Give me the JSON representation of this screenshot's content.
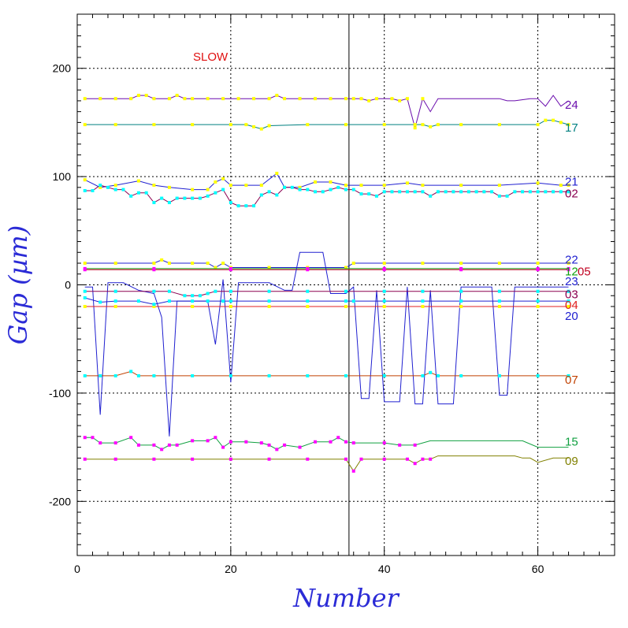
{
  "chart_data": {
    "type": "line",
    "xlabel": "Number",
    "ylabel": "Gap (µm)",
    "xlim": [
      0,
      70
    ],
    "ylim": [
      -250,
      250
    ],
    "x_ticks": [
      0,
      20,
      40,
      60
    ],
    "y_ticks": [
      -200,
      -100,
      0,
      100,
      200
    ],
    "grid": true,
    "divider_x": 35.4,
    "annotations": [
      {
        "text": "SLOW",
        "x": 19,
        "y": 210,
        "color": "#e01010"
      }
    ],
    "series": [
      {
        "name": "24",
        "color": "#6a0dad",
        "label_color": "#6a0dad",
        "label_y": 167,
        "marker": "#ffff00",
        "marker_max_x": 45,
        "x": [
          1,
          3,
          5,
          7,
          8,
          9,
          10,
          12,
          13,
          14,
          15,
          17,
          19,
          21,
          23,
          25,
          26,
          27,
          29,
          31,
          33,
          35,
          36,
          37,
          38,
          39,
          41,
          42,
          43,
          44,
          45,
          46,
          47,
          49,
          51,
          53,
          55,
          56,
          57,
          59,
          60,
          61,
          62,
          63,
          64
        ],
        "y": [
          172,
          172,
          172,
          172,
          175,
          175,
          172,
          172,
          175,
          172,
          172,
          172,
          172,
          172,
          172,
          172,
          175,
          172,
          172,
          172,
          172,
          172,
          172,
          172,
          170,
          172,
          172,
          170,
          172,
          145,
          172,
          160,
          172,
          172,
          172,
          172,
          172,
          170,
          170,
          172,
          172,
          165,
          175,
          165,
          170
        ]
      },
      {
        "name": "17",
        "color": "#008080",
        "label_color": "#008080",
        "label_y": 146,
        "marker": "#ffff00",
        "marker_max_x": 64,
        "x": [
          1,
          5,
          10,
          15,
          20,
          22,
          23,
          24,
          25,
          30,
          35,
          40,
          44,
          45,
          46,
          47,
          50,
          55,
          60,
          61,
          62,
          63,
          64
        ],
        "y": [
          148,
          148,
          148,
          148,
          148,
          148,
          146,
          144,
          147,
          148,
          148,
          148,
          148,
          148,
          146,
          148,
          148,
          148,
          148,
          152,
          152,
          150,
          148
        ]
      },
      {
        "name": "21",
        "color": "#2020d0",
        "label_color": "#2020d0",
        "label_y": 96,
        "marker": "#ffff00",
        "marker_max_x": 64,
        "x": [
          1,
          3,
          5,
          8,
          10,
          12,
          15,
          17,
          18,
          19,
          20,
          22,
          24,
          26,
          27,
          29,
          31,
          33,
          35,
          37,
          40,
          43,
          45,
          50,
          55,
          60,
          63,
          64
        ],
        "y": [
          97,
          90,
          92,
          96,
          92,
          90,
          88,
          88,
          95,
          98,
          92,
          92,
          92,
          103,
          90,
          90,
          95,
          95,
          92,
          92,
          92,
          94,
          92,
          92,
          92,
          94,
          92,
          92
        ]
      },
      {
        "name": "02",
        "color": "#8b0050",
        "label_color": "#8b0050",
        "label_y": 85,
        "marker": "#00ffff",
        "marker_max_x": 64,
        "x": [
          1,
          2,
          3,
          4,
          5,
          6,
          7,
          8,
          9,
          10,
          11,
          12,
          13,
          14,
          15,
          16,
          17,
          18,
          19,
          20,
          21,
          22,
          23,
          24,
          25,
          26,
          27,
          28,
          29,
          30,
          31,
          32,
          33,
          34,
          35,
          36,
          37,
          38,
          39,
          40,
          41,
          42,
          43,
          44,
          45,
          46,
          47,
          48,
          49,
          50,
          51,
          52,
          53,
          54,
          55,
          56,
          57,
          58,
          59,
          60,
          61,
          62,
          63,
          64
        ],
        "y": [
          87,
          87,
          92,
          90,
          88,
          88,
          82,
          85,
          85,
          76,
          80,
          76,
          80,
          80,
          80,
          80,
          82,
          85,
          88,
          76,
          73,
          73,
          73,
          83,
          86,
          83,
          90,
          90,
          88,
          88,
          86,
          86,
          88,
          90,
          88,
          88,
          84,
          84,
          82,
          86,
          86,
          86,
          86,
          86,
          86,
          82,
          86,
          86,
          86,
          86,
          86,
          86,
          86,
          86,
          82,
          82,
          86,
          86,
          86,
          86,
          86,
          86,
          86,
          86
        ]
      },
      {
        "name": "22",
        "color": "#2020d0",
        "label_color": "#2020d0",
        "label_y": 24,
        "marker": "#ffff00",
        "marker_max_x": 64,
        "x": [
          1,
          5,
          10,
          11,
          12,
          15,
          17,
          18,
          19,
          20,
          25,
          30,
          35,
          36,
          40,
          45,
          50,
          55,
          60,
          64
        ],
        "y": [
          20,
          20,
          20,
          23,
          20,
          20,
          20,
          16,
          20,
          16,
          16,
          16,
          16,
          20,
          20,
          20,
          20,
          20,
          20,
          20
        ]
      },
      {
        "name": "12",
        "color": "#10a010",
        "label_color": "#10a010",
        "label_y": 13,
        "marker": "#ff00ff",
        "marker_max_x": 64,
        "x": [
          1,
          10,
          20,
          30,
          40,
          50,
          60,
          64
        ],
        "y": [
          15,
          15,
          15,
          15,
          15,
          15,
          15,
          15
        ]
      },
      {
        "name": "05",
        "color": "#c00020",
        "label_color": "#c00020",
        "label_y": 13,
        "label_dx": 16,
        "marker": "#ff00ff",
        "marker_max_x": 64,
        "x": [
          1,
          10,
          20,
          30,
          40,
          50,
          60,
          64
        ],
        "y": [
          14,
          14,
          14,
          14,
          14,
          14,
          14,
          14
        ]
      },
      {
        "name": "23",
        "color": "#2020d0",
        "label_color": "#2020d0",
        "label_y": 4,
        "marker": "#ff00ff",
        "marker_max_x": 0,
        "x": [
          1,
          2,
          3,
          4,
          5,
          6,
          8,
          10,
          11,
          12,
          13,
          15,
          17,
          18,
          19,
          20,
          21,
          22,
          23,
          25,
          27,
          28,
          29,
          30,
          31,
          32,
          33,
          34,
          35,
          36,
          37,
          38,
          39,
          40,
          41,
          42,
          43,
          44,
          45,
          46,
          47,
          48,
          49,
          50,
          51,
          52,
          53,
          54,
          55,
          56,
          57,
          58,
          59,
          60,
          61,
          62,
          63,
          64
        ],
        "y": [
          -2,
          -2,
          -120,
          2,
          2,
          2,
          -5,
          -8,
          -30,
          -140,
          -15,
          -15,
          -15,
          -55,
          5,
          -90,
          2,
          2,
          2,
          2,
          -5,
          -5,
          30,
          30,
          30,
          30,
          -8,
          -8,
          -8,
          -2,
          -105,
          -105,
          -5,
          -108,
          -108,
          -108,
          -2,
          -110,
          -110,
          -5,
          -110,
          -110,
          -110,
          -2,
          -2,
          -2,
          -2,
          -2,
          -102,
          -102,
          -2,
          -2,
          -2,
          -2,
          -2,
          -2,
          -2,
          -2
        ]
      },
      {
        "name": "03",
        "color": "#8b0050",
        "label_color": "#8b0050",
        "label_y": -8,
        "marker": "#00ffff",
        "marker_max_x": 64,
        "x": [
          1,
          5,
          10,
          12,
          14,
          15,
          16,
          17,
          18,
          20,
          25,
          30,
          35,
          40,
          45,
          50,
          55,
          60,
          64
        ],
        "y": [
          -6,
          -6,
          -6,
          -6,
          -10,
          -10,
          -10,
          -8,
          -6,
          -6,
          -6,
          -6,
          -6,
          -6,
          -6,
          -6,
          -6,
          -6,
          -6
        ]
      },
      {
        "name": "04",
        "color": "#e02020",
        "label_color": "#e02020",
        "label_y": -18,
        "marker": "#ffff00",
        "marker_max_x": 64,
        "x": [
          1,
          5,
          10,
          15,
          20,
          25,
          30,
          35,
          40,
          45,
          50,
          55,
          60,
          64
        ],
        "y": [
          -20,
          -20,
          -20,
          -20,
          -20,
          -20,
          -20,
          -20,
          -20,
          -20,
          -20,
          -20,
          -20,
          -20
        ]
      },
      {
        "name": "20",
        "color": "#2020d0",
        "label_color": "#2020d0",
        "label_y": -28,
        "marker": "#00ffff",
        "marker_max_x": 64,
        "x": [
          1,
          3,
          5,
          8,
          10,
          12,
          15,
          17,
          19,
          20,
          25,
          30,
          35,
          36,
          40,
          45,
          50,
          55,
          60,
          64
        ],
        "y": [
          -12,
          -16,
          -15,
          -15,
          -18,
          -15,
          -15,
          -15,
          -15,
          -15,
          -15,
          -15,
          -15,
          -15,
          -15,
          -15,
          -15,
          -15,
          -15,
          -15
        ]
      },
      {
        "name": "07",
        "color": "#c04000",
        "label_color": "#c04000",
        "label_y": -87,
        "marker": "#00ffff",
        "marker_max_x": 64,
        "x": [
          1,
          3,
          5,
          7,
          8,
          10,
          15,
          20,
          25,
          30,
          35,
          40,
          45,
          46,
          47,
          50,
          55,
          60,
          64
        ],
        "y": [
          -84,
          -84,
          -84,
          -80,
          -84,
          -84,
          -84,
          -84,
          -84,
          -84,
          -84,
          -84,
          -84,
          -81,
          -84,
          -84,
          -84,
          -84,
          -84
        ]
      },
      {
        "name": "15",
        "color": "#10a040",
        "label_color": "#10a040",
        "label_y": -144,
        "marker": "#ff00ff",
        "marker_max_x": 44,
        "x": [
          1,
          2,
          3,
          5,
          7,
          8,
          10,
          11,
          12,
          13,
          15,
          17,
          18,
          19,
          20,
          22,
          24,
          25,
          26,
          27,
          29,
          31,
          33,
          34,
          35,
          36,
          40,
          42,
          44,
          46,
          48,
          50,
          55,
          58,
          60,
          62,
          64
        ],
        "y": [
          -141,
          -141,
          -146,
          -146,
          -141,
          -148,
          -148,
          -152,
          -148,
          -148,
          -144,
          -144,
          -141,
          -150,
          -145,
          -145,
          -146,
          -148,
          -152,
          -148,
          -150,
          -145,
          -145,
          -141,
          -145,
          -146,
          -146,
          -148,
          -148,
          -144,
          -144,
          -144,
          -144,
          -144,
          -150,
          -150,
          -150
        ]
      },
      {
        "name": "09",
        "color": "#808000",
        "label_color": "#808000",
        "label_y": -162,
        "marker": "#ff00ff",
        "marker_max_x": 46,
        "x": [
          1,
          5,
          10,
          15,
          20,
          25,
          30,
          35,
          36,
          37,
          40,
          43,
          44,
          45,
          46,
          47,
          50,
          55,
          57,
          58,
          59,
          60,
          62,
          64
        ],
        "y": [
          -161,
          -161,
          -161,
          -161,
          -161,
          -161,
          -161,
          -161,
          -172,
          -161,
          -161,
          -161,
          -165,
          -161,
          -161,
          -158,
          -158,
          -158,
          -158,
          -160,
          -160,
          -164,
          -160,
          -160
        ]
      }
    ]
  }
}
